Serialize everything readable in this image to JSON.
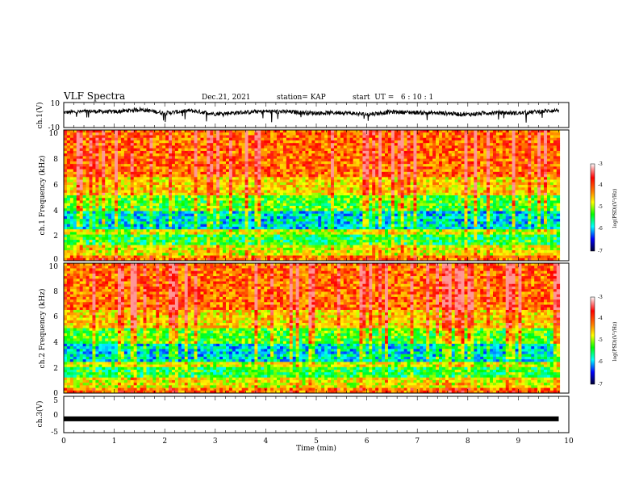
{
  "header": {
    "title": "VLF Spectra",
    "date": "Dec.21, 2021",
    "station": "station= KAP",
    "start_ut": "start  UT =   6 : 10 : 1"
  },
  "chart_data": [
    {
      "type": "line",
      "ylabel": "ch.1(V)",
      "ylim": [
        -10,
        10
      ],
      "y_ticks": [
        "10",
        "-10"
      ],
      "xlim": [
        0,
        10
      ],
      "description_series": "voltage waveform ~0 to +5 V with dips",
      "x": [
        0,
        0.5,
        1.0,
        1.5,
        2.0,
        2.5,
        3.0,
        3.5,
        4.0,
        4.5,
        5.0,
        5.5,
        6.0,
        6.5,
        7.0,
        7.5,
        8.0,
        8.5,
        9.0,
        9.5,
        9.8
      ],
      "values": [
        2.0,
        3.0,
        2.5,
        4.5,
        1.5,
        3.5,
        1.0,
        2.0,
        3.0,
        2.5,
        1.5,
        2.0,
        0.5,
        2.5,
        2.0,
        1.5,
        0.5,
        2.0,
        1.5,
        3.0,
        4.0
      ]
    },
    {
      "type": "heatmap",
      "ylabel": "ch.1 Frequency (kHz)",
      "ylim": [
        0,
        10
      ],
      "y_ticks": [
        "0",
        "2",
        "4",
        "6",
        "8",
        "10"
      ],
      "xlim": [
        0,
        10
      ],
      "colorbar": {
        "label": "log(PSD)(V²/Hz)",
        "range": [
          -7,
          -3
        ],
        "ticks": [
          "-3",
          "-4",
          "-5",
          "-6",
          "-7"
        ]
      }
    },
    {
      "type": "heatmap",
      "ylabel": "ch.2 Frequency (kHz)",
      "ylim": [
        0,
        10
      ],
      "y_ticks": [
        "0",
        "2",
        "4",
        "6",
        "8",
        "10"
      ],
      "xlim": [
        0,
        10
      ],
      "colorbar": {
        "label": "log(PSD)(V²/Hz)",
        "range": [
          -7,
          -3
        ],
        "ticks": [
          "-3",
          "-4",
          "-5",
          "-6",
          "-7"
        ]
      }
    },
    {
      "type": "line",
      "ylabel": "ch.3(V)",
      "ylim": [
        -5,
        5
      ],
      "y_ticks": [
        "5",
        "0",
        "-5"
      ],
      "xlim": [
        0,
        9.8
      ],
      "x": [
        0,
        9.8
      ],
      "values": [
        -1.2,
        -1.2
      ]
    }
  ],
  "xaxis": {
    "label": "Time (min)",
    "ticks": [
      "0",
      "1",
      "2",
      "3",
      "4",
      "5",
      "6",
      "7",
      "8",
      "9",
      "10"
    ]
  }
}
